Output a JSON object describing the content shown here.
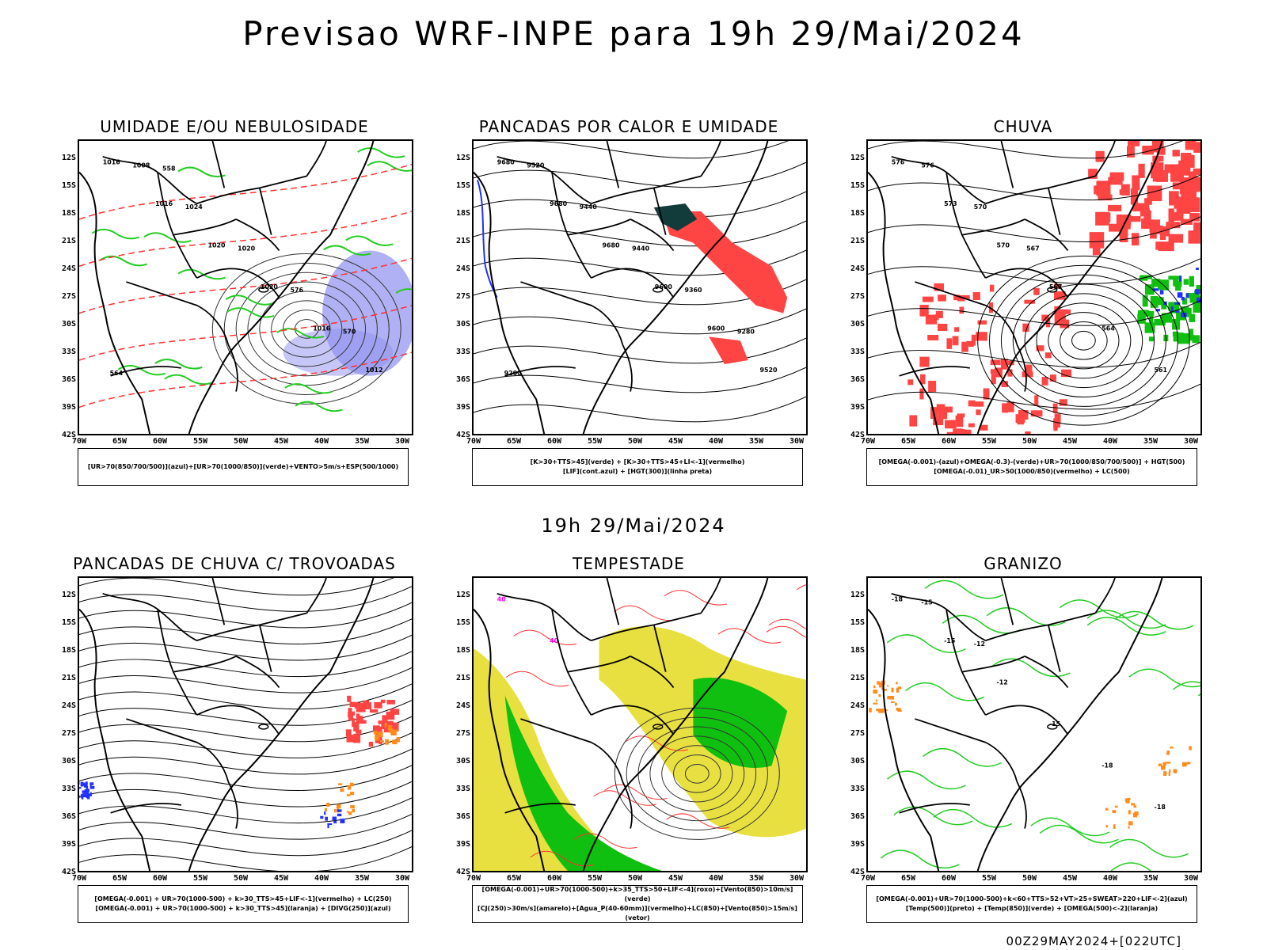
{
  "title": "Previsao WRF-INPE  para 19h 29/Mai/2024",
  "mid_title": "19h 29/Mai/2024",
  "footer": "00Z29MAY2024+[022UTC]",
  "axes": {
    "lat_ticks": [
      "12S",
      "15S",
      "18S",
      "21S",
      "24S",
      "27S",
      "30S",
      "33S",
      "36S",
      "39S",
      "42S"
    ],
    "lon_ticks": [
      "70W",
      "65W",
      "60W",
      "55W",
      "50W",
      "45W",
      "40W",
      "35W",
      "30W"
    ]
  },
  "panels": [
    {
      "title": "UMIDADE E/OU NEBULOSIDADE",
      "legend": [
        "[UR>70(850/700/500)](azul)+[UR>70(1000/850)](verde)+VENTO>5m/s+ESP(500/1000)"
      ],
      "contour_labels": [
        "1016",
        "1016",
        "1020",
        "1020",
        "1016",
        "1012",
        "1008",
        "1024",
        "1020",
        "576",
        "570",
        "564",
        "558"
      ]
    },
    {
      "title": "PANCADAS POR CALOR E UMIDADE",
      "legend": [
        "[K>30+TTS>45](verde)  +  [K>30+TTS>45+LI<-1](vermelho)",
        "[LIF](cont.azul)  +  [HGT(300)](linha preta)"
      ],
      "contour_labels": [
        "9680",
        "9680",
        "9680",
        "9600",
        "9600",
        "9520",
        "9520",
        "9440",
        "9440",
        "9360",
        "9280",
        "9200"
      ]
    },
    {
      "title": "CHUVA",
      "legend": [
        "[OMEGA(-0.001)-(azul)+OMEGA(-0.3)-(verde)+UR>70(1000/850/700/500)]  +  HGT(500)",
        "[OMEGA(-0.01)_UR>50(1000/850)(vermelho)  +  LC(500)"
      ],
      "contour_labels": [
        "576",
        "573",
        "570",
        "567",
        "564",
        "561",
        "576",
        "570",
        "567"
      ]
    },
    {
      "title": "PANCADAS DE CHUVA C/ TROVOADAS",
      "legend": [
        "[OMEGA(-0.001)  +  UR>70(1000-500)  +  k>30_TTS>45+LIF<-1](vermelho)  +  LC(250)",
        "[OMEGA(-0.001)  +  UR>70(1000-500)  +  k>30_TTS>45](laranja)  +  [DIVG(250)](azul)"
      ],
      "contour_labels": []
    },
    {
      "title": "TEMPESTADE",
      "legend": [
        "[OMEGA(-0.001)+UR>70(1000-500)+k>35_TTS>50+LIF<-4](roxo)+[Vento(850)>10m/s](verde)",
        "[CJ(250)>30m/s](amarelo)+[Agua_P(40-60mm)](vermelho)+LC(850)+[Vento(850)>15m/s](vetor)"
      ],
      "contour_labels": [
        "40",
        "40"
      ]
    },
    {
      "title": "GRANIZO",
      "legend": [
        "[OMEGA(-0.001)+UR>70(1000-500)+k<60+TTS>52+VT>25+SWEAT>220+LIF<-2](azul)",
        "[Temp(500)](preto)  +  [Temp(850)](verde)  +  [OMEGA(500)<-2](laranja)"
      ],
      "contour_labels": [
        "-18",
        "-15",
        "-12",
        "-15",
        "-18",
        "-18",
        "-15",
        "-12"
      ]
    }
  ],
  "colors": {
    "blue_shade": "#8f8fef",
    "green_line": "#22cc22",
    "red_dash": "#ff3030",
    "red_fill": "#ff4444",
    "dark_teal": "#123c3c",
    "yellow_fill": "#e8e040",
    "green_fill": "#10c010",
    "orange": "#ff8c1a",
    "blue_line": "#2030ff"
  }
}
